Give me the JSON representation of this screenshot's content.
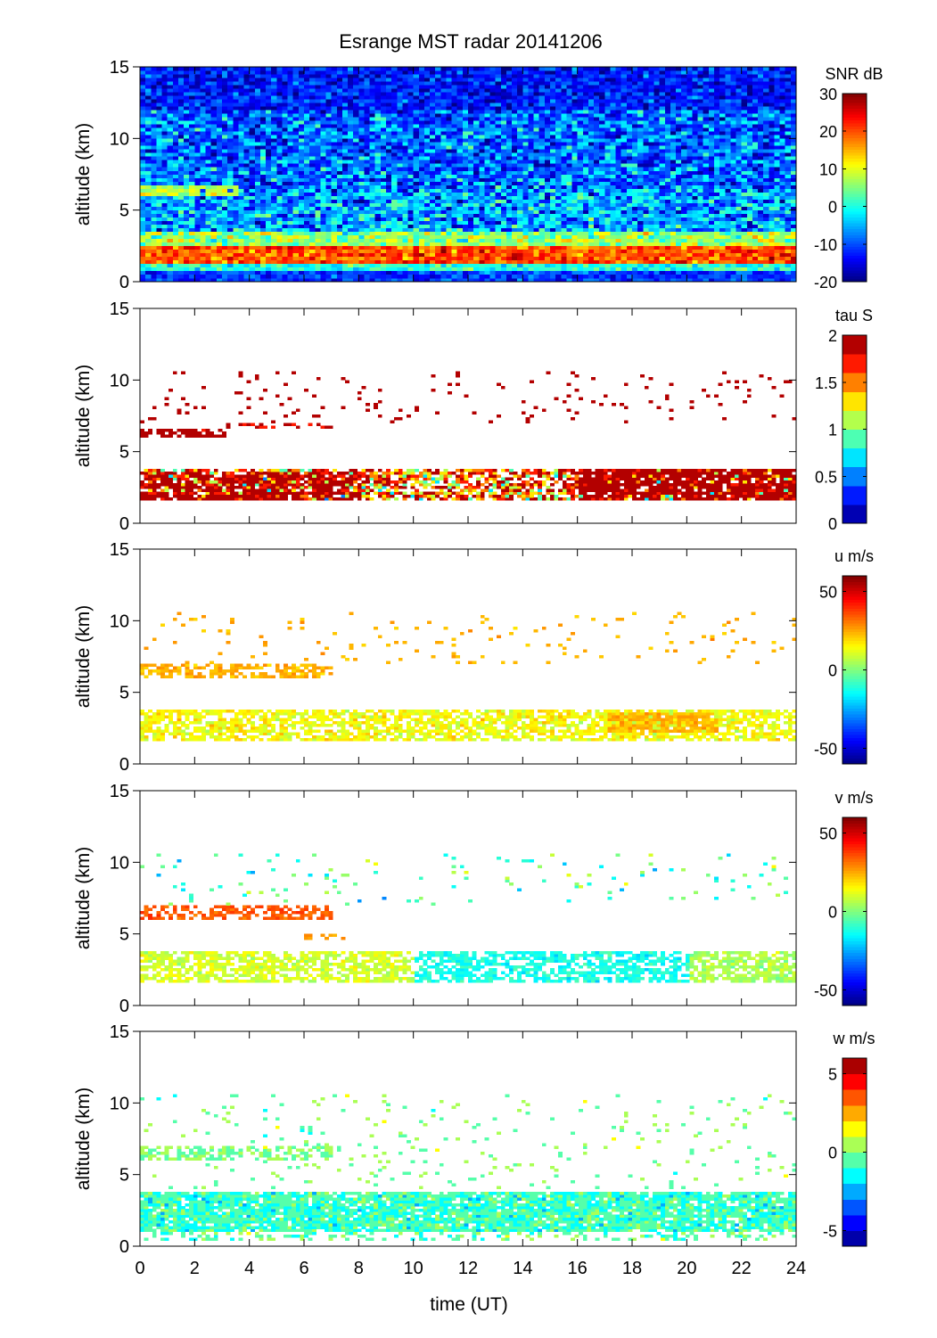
{
  "figure": {
    "title": "Esrange MST radar 20141206",
    "xlabel": "time (UT)",
    "x_ticks": [
      "0",
      "2",
      "4",
      "6",
      "8",
      "10",
      "12",
      "14",
      "16",
      "18",
      "20",
      "22",
      "24"
    ]
  },
  "chart_data": [
    {
      "type": "heatmap",
      "quantity": "SNR",
      "colorbar_label": "SNR dB",
      "ylabel": "altitude (km)",
      "xlim": [
        0,
        24
      ],
      "ylim": [
        0,
        15
      ],
      "y_ticks": [
        "0",
        "5",
        "10",
        "15"
      ],
      "clim": [
        -20,
        30
      ],
      "colorbar_ticks": [
        {
          "v": 30,
          "label": "30"
        },
        {
          "v": 20,
          "label": "20"
        },
        {
          "v": 10,
          "label": "10"
        },
        {
          "v": 0,
          "label": "0"
        },
        {
          "v": -10,
          "label": "-10"
        },
        {
          "v": -20,
          "label": "-20"
        }
      ],
      "levels": 64,
      "background": {
        "value": -13,
        "spread": 5,
        "density": 1
      },
      "features": [
        {
          "t": [
            0,
            24
          ],
          "alt": [
            6.5,
            12
          ],
          "value": -6,
          "spread": 6,
          "density": 0.6
        },
        {
          "t": [
            0,
            24
          ],
          "alt": [
            3.5,
            6.5
          ],
          "value": -4,
          "spread": 6,
          "density": 0.8
        },
        {
          "t": [
            0,
            3.5
          ],
          "alt": [
            6,
            6.6
          ],
          "value": 8,
          "spread": 4,
          "density": 0.9
        },
        {
          "t": [
            0,
            24
          ],
          "alt": [
            2.5,
            3.5
          ],
          "value": 6,
          "spread": 6,
          "density": 1
        },
        {
          "t": [
            0,
            24
          ],
          "alt": [
            1.2,
            2.5
          ],
          "value": 20,
          "spread": 5,
          "density": 1
        },
        {
          "t": [
            0,
            24
          ],
          "alt": [
            0.6,
            1.2
          ],
          "value": 0,
          "spread": 4,
          "density": 1
        },
        {
          "t": [
            0,
            24
          ],
          "alt": [
            0,
            0.6
          ],
          "value": -11,
          "spread": 4,
          "density": 1
        }
      ]
    },
    {
      "type": "heatmap",
      "quantity": "tau",
      "colorbar_label": "tau S",
      "ylabel": "altitude (km)",
      "xlim": [
        0,
        24
      ],
      "ylim": [
        0,
        15
      ],
      "y_ticks": [
        "0",
        "5",
        "10",
        "15"
      ],
      "clim": [
        0,
        2
      ],
      "colorbar_ticks": [
        {
          "v": 2,
          "label": "2"
        },
        {
          "v": 1.5,
          "label": "1.5"
        },
        {
          "v": 1,
          "label": "1"
        },
        {
          "v": 0.5,
          "label": "0.5"
        },
        {
          "v": 0,
          "label": "0"
        }
      ],
      "levels": 10,
      "features": [
        {
          "t": [
            0,
            24
          ],
          "alt": [
            1.5,
            3.8
          ],
          "value": 1.6,
          "spread": 0.6,
          "density": 0.7
        },
        {
          "t": [
            0,
            8
          ],
          "alt": [
            1.5,
            3.5
          ],
          "value": 1.95,
          "spread": 0.2,
          "density": 0.6
        },
        {
          "t": [
            16,
            24
          ],
          "alt": [
            1.5,
            3.8
          ],
          "value": 1.95,
          "spread": 0.15,
          "density": 0.75
        },
        {
          "t": [
            0,
            3
          ],
          "alt": [
            6,
            6.6
          ],
          "value": 1.95,
          "spread": 0.1,
          "density": 0.8
        },
        {
          "t": [
            3,
            7
          ],
          "alt": [
            6.5,
            7
          ],
          "value": 1.9,
          "spread": 0.2,
          "density": 0.4
        },
        {
          "t": [
            0,
            24
          ],
          "alt": [
            7,
            10.5
          ],
          "value": 1.95,
          "spread": 0.1,
          "density": 0.05
        }
      ]
    },
    {
      "type": "heatmap",
      "quantity": "u",
      "colorbar_label": "u m/s",
      "ylabel": "altitude (km)",
      "xlim": [
        0,
        24
      ],
      "ylim": [
        0,
        15
      ],
      "y_ticks": [
        "0",
        "5",
        "10",
        "15"
      ],
      "clim": [
        -60,
        60
      ],
      "colorbar_ticks": [
        {
          "v": 50,
          "label": "50"
        },
        {
          "v": 0,
          "label": "0"
        },
        {
          "v": -50,
          "label": "-50"
        }
      ],
      "levels": 64,
      "features": [
        {
          "t": [
            0,
            24
          ],
          "alt": [
            1.5,
            3.8
          ],
          "value": 14,
          "spread": 6,
          "density": 0.7
        },
        {
          "t": [
            17,
            21
          ],
          "alt": [
            2,
            3.5
          ],
          "value": 24,
          "spread": 4,
          "density": 0.8
        },
        {
          "t": [
            0,
            7
          ],
          "alt": [
            6,
            7
          ],
          "value": 24,
          "spread": 4,
          "density": 0.6
        },
        {
          "t": [
            0,
            24
          ],
          "alt": [
            7,
            10.5
          ],
          "value": 24,
          "spread": 4,
          "density": 0.04
        }
      ]
    },
    {
      "type": "heatmap",
      "quantity": "v",
      "colorbar_label": "v m/s",
      "ylabel": "altitude (km)",
      "xlim": [
        0,
        24
      ],
      "ylim": [
        0,
        15
      ],
      "y_ticks": [
        "0",
        "5",
        "10",
        "15"
      ],
      "clim": [
        -60,
        60
      ],
      "colorbar_ticks": [
        {
          "v": 50,
          "label": "50"
        },
        {
          "v": 0,
          "label": "0"
        },
        {
          "v": -50,
          "label": "-50"
        }
      ],
      "levels": 64,
      "features": [
        {
          "t": [
            0,
            10
          ],
          "alt": [
            1.5,
            3.8
          ],
          "value": 10,
          "spread": 5,
          "density": 0.7
        },
        {
          "t": [
            10,
            20
          ],
          "alt": [
            1.5,
            3.8
          ],
          "value": -12,
          "spread": 5,
          "density": 0.65
        },
        {
          "t": [
            20,
            24
          ],
          "alt": [
            1.5,
            3.8
          ],
          "value": 5,
          "spread": 5,
          "density": 0.7
        },
        {
          "t": [
            0,
            7
          ],
          "alt": [
            6,
            7
          ],
          "value": 35,
          "spread": 4,
          "density": 0.6
        },
        {
          "t": [
            6,
            7.5
          ],
          "alt": [
            4.5,
            5
          ],
          "value": 28,
          "spread": 3,
          "density": 0.6
        },
        {
          "t": [
            0,
            24
          ],
          "alt": [
            7,
            10.5
          ],
          "value": -5,
          "spread": 15,
          "density": 0.04
        }
      ]
    },
    {
      "type": "heatmap",
      "quantity": "w",
      "colorbar_label": "w m/s",
      "ylabel": "altitude (km)",
      "xlim": [
        0,
        24
      ],
      "ylim": [
        0,
        15
      ],
      "y_ticks": [
        "0",
        "5",
        "10",
        "15"
      ],
      "clim": [
        -6,
        6
      ],
      "colorbar_ticks": [
        {
          "v": 5,
          "label": "5"
        },
        {
          "v": 0,
          "label": "0"
        },
        {
          "v": -5,
          "label": "-5"
        }
      ],
      "levels": 12,
      "features": [
        {
          "t": [
            0,
            24
          ],
          "alt": [
            1,
            3.8
          ],
          "value": -0.8,
          "spread": 0.9,
          "density": 0.9
        },
        {
          "t": [
            0,
            24
          ],
          "alt": [
            0.3,
            1
          ],
          "value": -0.5,
          "spread": 1,
          "density": 0.3
        },
        {
          "t": [
            0,
            7
          ],
          "alt": [
            6,
            7
          ],
          "value": 0,
          "spread": 0.6,
          "density": 0.5
        },
        {
          "t": [
            0,
            24
          ],
          "alt": [
            4,
            10.5
          ],
          "value": 0,
          "spread": 0.8,
          "density": 0.05
        }
      ]
    }
  ]
}
